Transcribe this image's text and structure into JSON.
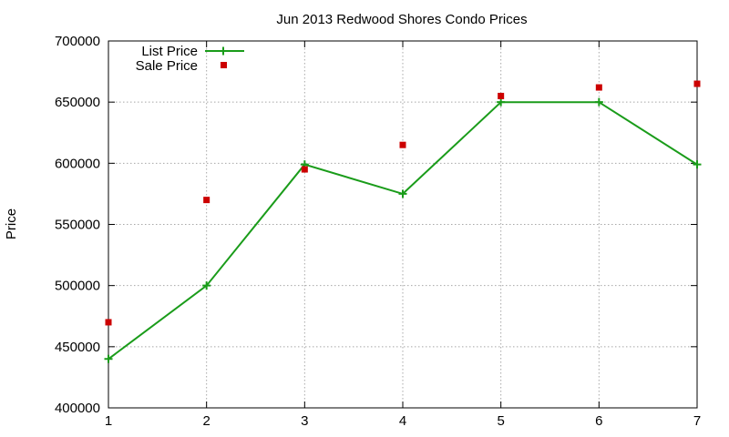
{
  "chart_data": {
    "type": "line",
    "title": "Jun 2013 Redwood Shores Condo Prices",
    "xlabel": "",
    "ylabel": "Price",
    "xlim": [
      1,
      7
    ],
    "ylim": [
      400000,
      700000
    ],
    "x_ticks": [
      "1",
      "2",
      "3",
      "4",
      "5",
      "6",
      "7"
    ],
    "y_ticks": [
      "400000",
      "450000",
      "500000",
      "550000",
      "600000",
      "650000",
      "700000"
    ],
    "grid": true,
    "legend_position": "top-left",
    "series": [
      {
        "name": "List Price",
        "style": "line-with-plus-markers",
        "color": "#1a9c1a",
        "x": [
          1,
          2,
          3,
          4,
          5,
          6,
          7
        ],
        "y": [
          440000,
          500000,
          599000,
          575000,
          650000,
          650000,
          599000
        ]
      },
      {
        "name": "Sale Price",
        "style": "square-markers",
        "color": "#cc0000",
        "x": [
          1,
          2,
          3,
          4,
          5,
          6,
          7
        ],
        "y": [
          470000,
          570000,
          595000,
          615000,
          655000,
          662000,
          665000
        ]
      }
    ]
  }
}
